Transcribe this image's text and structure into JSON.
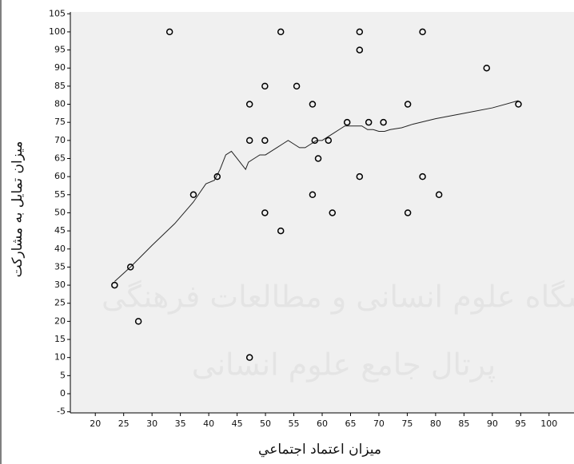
{
  "chart_data": {
    "type": "scatter",
    "x_label": "ميزان اعتماد اجتماعي",
    "y_label": "ميزان تمايل به مشاركت",
    "watermark": [
      "پژوهشگاه علوم انسانی و مطالعات فرهنگی",
      "پرتال جامع علوم انسانی"
    ],
    "point_color": "#000000",
    "line_color": "#222222",
    "x": [
      33.1,
      52.7,
      66.6,
      77.7,
      66.6,
      89.0,
      49.9,
      55.5,
      47.2,
      58.3,
      75.1,
      94.6,
      64.4,
      68.2,
      70.8,
      47.2,
      49.9,
      58.7,
      61.1,
      59.3,
      41.5,
      66.6,
      77.7,
      37.3,
      58.3,
      80.6,
      49.9,
      61.8,
      75.1,
      52.7,
      26.2,
      23.4,
      27.6,
      47.2
    ],
    "values": [
      100,
      100,
      100,
      100,
      95,
      90,
      85,
      85,
      80,
      80,
      80,
      80,
      75,
      75,
      75,
      70,
      70,
      70,
      70,
      65,
      60,
      60,
      60,
      55,
      55,
      55,
      50,
      50,
      50,
      45,
      35,
      30,
      20,
      10
    ],
    "fit_line": {
      "x": [
        23.4,
        26.2,
        30,
        34,
        37.3,
        39.5,
        41,
        42,
        43,
        44,
        45,
        46,
        46.5,
        47,
        48,
        49,
        50,
        51,
        52,
        53,
        54,
        55,
        56,
        57,
        58,
        59,
        60,
        61,
        62,
        63,
        64,
        65,
        66,
        67,
        68,
        69,
        70,
        71,
        72,
        74,
        76,
        80,
        85,
        90,
        94.6
      ],
      "values": [
        31,
        35,
        41,
        47,
        53,
        58,
        59,
        62,
        66,
        67,
        65,
        63,
        62,
        64,
        65,
        66,
        66,
        67,
        68,
        69,
        70,
        69,
        68,
        68,
        69,
        70,
        70,
        71,
        72,
        73,
        74,
        74,
        74,
        74,
        73,
        73,
        72.5,
        72.5,
        73,
        73.5,
        74.5,
        76,
        77.5,
        79,
        81
      ]
    },
    "xlim": [
      15.6,
      104.4
    ],
    "ylim": [
      -5.3,
      105.5
    ],
    "xticks": [
      20,
      25,
      30,
      35,
      40,
      45,
      50,
      55,
      60,
      65,
      70,
      75,
      80,
      85,
      90,
      95,
      100
    ],
    "yticks": [
      -5,
      0,
      5,
      10,
      15,
      20,
      25,
      30,
      35,
      40,
      45,
      50,
      55,
      60,
      65,
      70,
      75,
      80,
      85,
      90,
      95,
      100,
      105
    ]
  }
}
